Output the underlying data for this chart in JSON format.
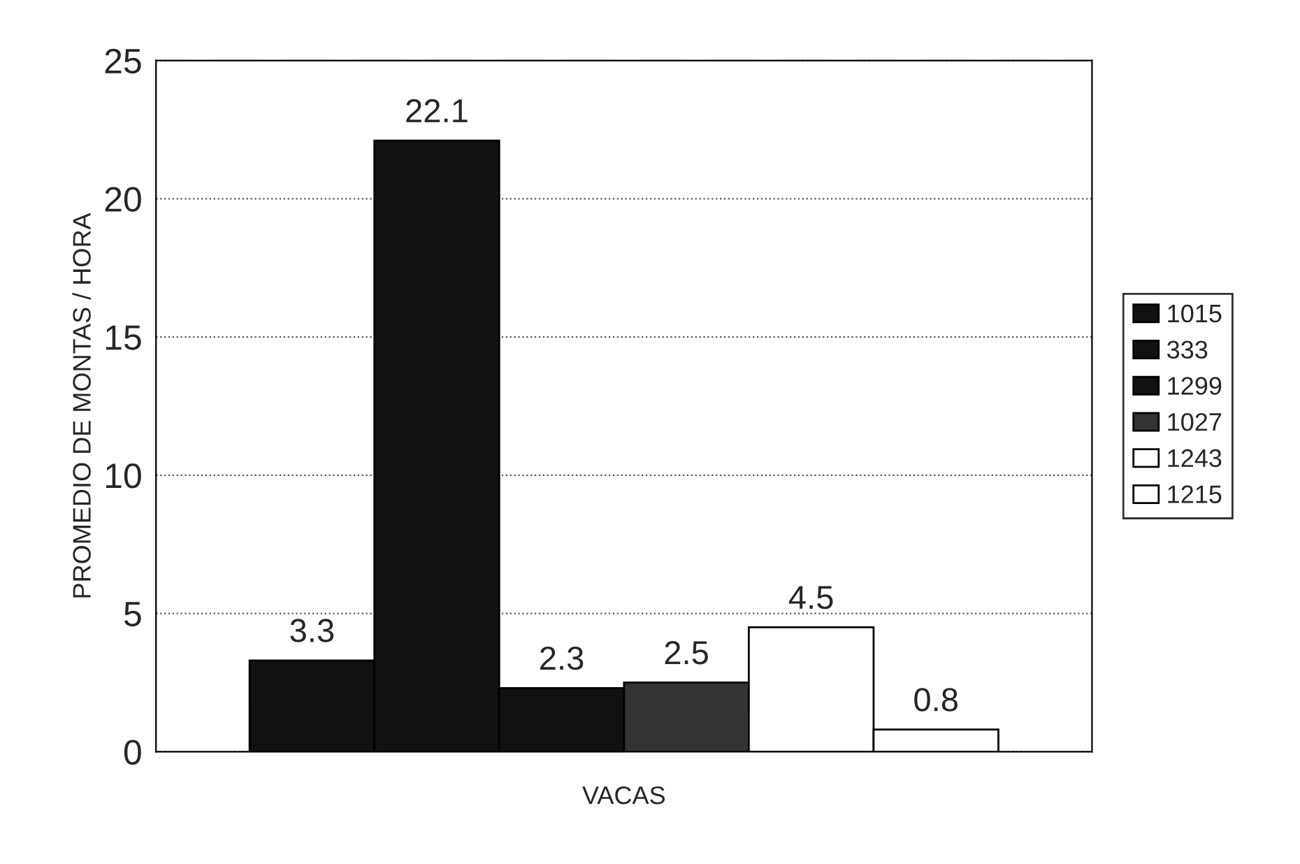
{
  "chart_data": {
    "type": "bar",
    "xlabel": "VACAS",
    "ylabel": "PROMEDIO DE MONTAS / HORA",
    "categories": [
      null
    ],
    "series": [
      {
        "name": "1015",
        "color": "#111111",
        "values": [
          3.3
        ]
      },
      {
        "name": "333",
        "color": "#111111",
        "values": [
          22.1
        ]
      },
      {
        "name": "1299",
        "color": "#111111",
        "values": [
          2.3
        ]
      },
      {
        "name": "1027",
        "color": "#333333",
        "values": [
          2.5
        ]
      },
      {
        "name": "1243",
        "color": "#ffffff",
        "values": [
          4.5
        ]
      },
      {
        "name": "1215",
        "color": "#ffffff",
        "values": [
          0.8
        ]
      }
    ],
    "ylim": [
      0,
      25
    ],
    "yticks": [
      0,
      5,
      10,
      15,
      20,
      25
    ],
    "grid": "y",
    "legend": "right",
    "data_labels": true
  }
}
